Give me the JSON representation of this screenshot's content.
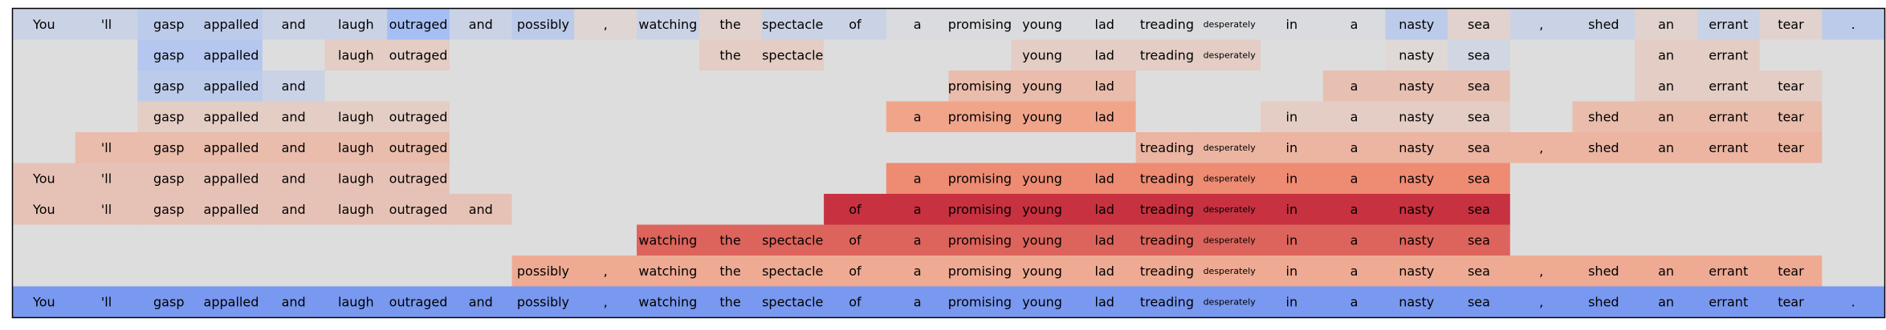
{
  "chart_data": {
    "type": "heatmap",
    "title": "",
    "tokens": [
      "You",
      "'ll",
      "gasp",
      "appalled",
      "and",
      "laugh",
      "outraged",
      "and",
      "possibly",
      ",",
      "watching",
      "the",
      "spectacle",
      "of",
      "a",
      "promising",
      "young",
      "lad",
      "treading",
      "desperately",
      "in",
      "a",
      "nasty",
      "sea",
      ",",
      "shed",
      "an",
      "errant",
      "tear",
      "."
    ],
    "color_scale": "coolwarm",
    "value_range": [
      -1,
      1
    ],
    "rows": [
      [
        -0.12,
        -0.12,
        -0.2,
        -0.2,
        -0.12,
        -0.12,
        -0.35,
        -0.12,
        -0.2,
        0.05,
        -0.12,
        0.08,
        -0.12,
        -0.12,
        -0.02,
        -0.02,
        -0.02,
        -0.02,
        -0.02,
        -0.02,
        -0.02,
        -0.02,
        -0.2,
        0.08,
        -0.12,
        -0.12,
        0.08,
        -0.12,
        0.08,
        -0.2
      ],
      [
        null,
        null,
        -0.25,
        -0.25,
        null,
        0.12,
        0.12,
        null,
        null,
        null,
        null,
        0.12,
        0.12,
        null,
        null,
        null,
        0.12,
        0.12,
        0.12,
        0.12,
        null,
        null,
        0.04,
        -0.08,
        null,
        null,
        0.12,
        0.12,
        null,
        null
      ],
      [
        null,
        null,
        -0.2,
        -0.2,
        -0.12,
        null,
        null,
        null,
        null,
        null,
        null,
        null,
        null,
        null,
        null,
        0.25,
        0.25,
        0.25,
        null,
        null,
        null,
        0.22,
        0.22,
        0.22,
        null,
        null,
        0.12,
        0.12,
        0.12,
        null
      ],
      [
        null,
        null,
        0.12,
        0.12,
        0.12,
        0.12,
        0.12,
        null,
        null,
        null,
        null,
        null,
        null,
        null,
        0.42,
        0.42,
        0.42,
        0.42,
        null,
        null,
        0.12,
        0.12,
        0.12,
        0.12,
        null,
        0.25,
        0.25,
        0.25,
        0.25,
        null
      ],
      [
        null,
        0.25,
        0.25,
        0.25,
        0.25,
        0.25,
        0.25,
        null,
        null,
        null,
        null,
        null,
        null,
        null,
        null,
        null,
        null,
        null,
        0.3,
        0.3,
        0.3,
        0.3,
        0.3,
        0.3,
        0.3,
        0.3,
        0.3,
        0.3,
        0.3,
        null
      ],
      [
        0.2,
        0.2,
        0.2,
        0.2,
        0.2,
        0.2,
        0.2,
        null,
        null,
        null,
        null,
        null,
        null,
        null,
        0.55,
        0.55,
        0.55,
        0.55,
        0.55,
        0.55,
        0.55,
        0.55,
        0.55,
        0.55,
        null,
        null,
        null,
        null,
        null,
        null
      ],
      [
        0.2,
        0.2,
        0.2,
        0.2,
        0.2,
        0.2,
        0.2,
        0.2,
        null,
        null,
        null,
        null,
        null,
        0.85,
        0.85,
        0.85,
        0.85,
        0.85,
        0.85,
        0.85,
        0.85,
        0.85,
        0.85,
        0.85,
        null,
        null,
        null,
        null,
        null,
        null
      ],
      [
        null,
        null,
        null,
        null,
        null,
        null,
        null,
        null,
        null,
        null,
        0.68,
        0.68,
        0.68,
        0.68,
        0.68,
        0.68,
        0.68,
        0.68,
        0.68,
        0.68,
        0.68,
        0.68,
        0.68,
        0.68,
        null,
        null,
        null,
        null,
        null,
        null
      ],
      [
        null,
        null,
        null,
        null,
        null,
        null,
        null,
        null,
        0.38,
        0.38,
        0.38,
        0.38,
        0.38,
        0.38,
        0.38,
        0.38,
        0.38,
        0.38,
        0.38,
        0.38,
        0.38,
        0.38,
        0.38,
        0.38,
        0.38,
        0.38,
        0.38,
        0.38,
        0.38,
        null
      ],
      [
        -0.62,
        -0.62,
        -0.62,
        -0.62,
        -0.62,
        -0.62,
        -0.62,
        -0.62,
        -0.62,
        -0.62,
        -0.62,
        -0.62,
        -0.62,
        -0.62,
        -0.62,
        -0.62,
        -0.62,
        -0.62,
        -0.62,
        -0.62,
        -0.62,
        -0.62,
        -0.62,
        -0.62,
        -0.62,
        -0.62,
        -0.62,
        -0.62,
        -0.62,
        -0.62
      ]
    ],
    "empty_cell_color": "#dddddd",
    "small_font_tokens": [
      "desperately"
    ],
    "grid": false,
    "legend": "none"
  }
}
